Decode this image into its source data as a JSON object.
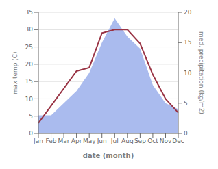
{
  "chart_data": {
    "type": "line",
    "categories": [
      "Jan",
      "Feb",
      "Mar",
      "Apr",
      "May",
      "Jun",
      "Jul",
      "Aug",
      "Sep",
      "Oct",
      "Nov",
      "Dec"
    ],
    "xlabel": "date (month)",
    "ylabel": "max temp (C)",
    "y2label": "med. precipitation (kg/m2)",
    "ylim": [
      0,
      35
    ],
    "yticks": [
      0,
      5,
      10,
      15,
      20,
      25,
      30,
      35
    ],
    "y2lim": [
      0,
      20
    ],
    "y2ticks": [
      0,
      5,
      10,
      15,
      20
    ],
    "grid": true,
    "series": [
      {
        "type": "area",
        "axis": "y2",
        "color": "#aabbee",
        "values": [
          3,
          3,
          5,
          7,
          10,
          15,
          19,
          16,
          14,
          8,
          5,
          4
        ]
      },
      {
        "type": "line",
        "color": "#993344",
        "values": [
          3,
          8,
          13,
          18,
          19,
          29,
          30,
          30,
          26,
          17,
          10,
          6
        ]
      }
    ]
  }
}
